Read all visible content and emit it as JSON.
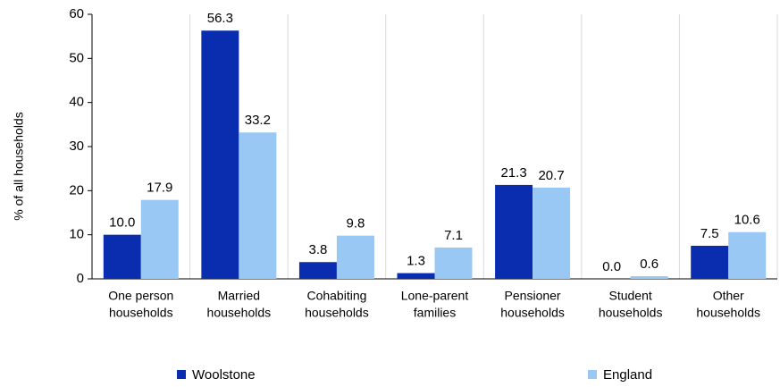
{
  "chart_data": {
    "type": "bar",
    "y_label": "% of all households",
    "categories": [
      [
        "One person",
        "households"
      ],
      [
        "Married",
        "households"
      ],
      [
        "Cohabiting",
        "households"
      ],
      [
        "Lone-parent",
        "families"
      ],
      [
        "Pensioner",
        "households"
      ],
      [
        "Student",
        "households"
      ],
      [
        "Other",
        "households"
      ]
    ],
    "series": [
      {
        "name": "Woolstone",
        "color": "#0a2db0",
        "values": [
          10.0,
          56.3,
          3.8,
          1.3,
          21.3,
          0.0,
          7.5
        ],
        "value_labels": [
          "10.0",
          "56.3",
          "3.8",
          "1.3",
          "21.3",
          "0.0",
          "7.5"
        ]
      },
      {
        "name": "England",
        "color": "#99c8f5",
        "values": [
          17.9,
          33.2,
          9.8,
          7.1,
          20.7,
          0.6,
          10.6
        ],
        "value_labels": [
          "17.9",
          "33.2",
          "9.8",
          "7.1",
          "20.7",
          "0.6",
          "10.6"
        ]
      }
    ],
    "ylim": [
      0,
      60
    ],
    "yticks": [
      0,
      10,
      20,
      30,
      40,
      50,
      60
    ]
  }
}
